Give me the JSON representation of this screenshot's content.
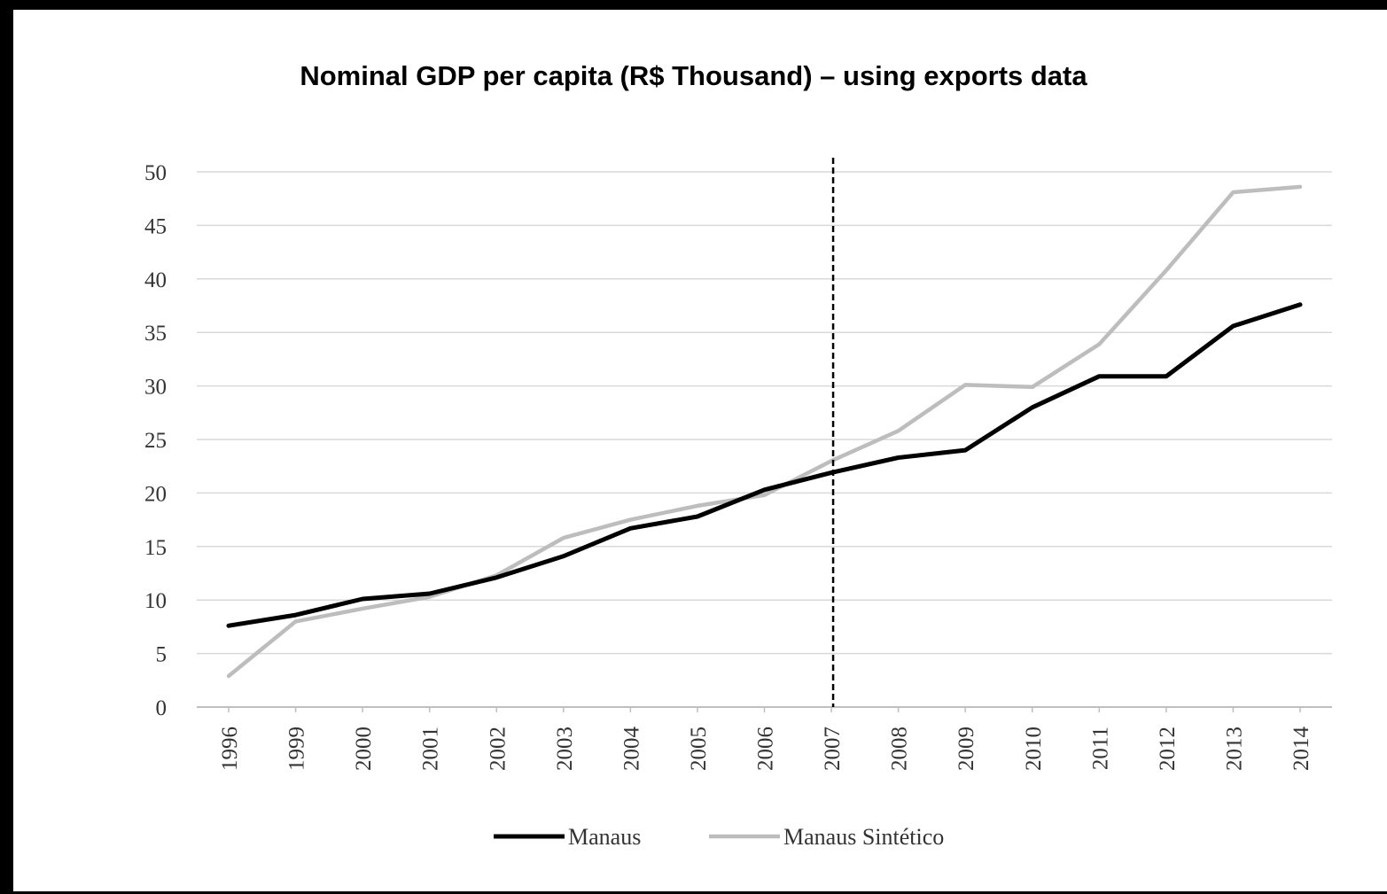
{
  "colors": {
    "manaus": "#000000",
    "synthetic": "#bdbdbd",
    "grid": "#d9d9d9",
    "axis": "#bfbfbf",
    "marker": "#000000"
  },
  "chart_data": {
    "type": "line",
    "title": "Nominal GDP per capita (R$ Thousand) – using exports data",
    "xlabel": "",
    "ylabel": "",
    "categories": [
      "1996",
      "1999",
      "2000",
      "2001",
      "2002",
      "2003",
      "2004",
      "2005",
      "2006",
      "2007",
      "2008",
      "2009",
      "2010",
      "2011",
      "2012",
      "2013",
      "2014"
    ],
    "ylim": [
      0,
      50
    ],
    "yticks": [
      0,
      5,
      10,
      15,
      20,
      25,
      30,
      35,
      40,
      45,
      50
    ],
    "grid": true,
    "legend_position": "bottom",
    "vertical_marker": "2007",
    "series": [
      {
        "name": "Manaus",
        "color": "#000000",
        "values": [
          7.6,
          8.6,
          10.1,
          10.6,
          12.1,
          14.1,
          16.7,
          17.8,
          20.3,
          21.9,
          23.3,
          24.0,
          28.0,
          30.9,
          30.9,
          35.6,
          37.6
        ]
      },
      {
        "name": "Manaus Sintético",
        "color": "#bdbdbd",
        "values": [
          2.9,
          8.0,
          9.2,
          10.3,
          12.3,
          15.8,
          17.5,
          18.8,
          19.8,
          23.0,
          25.8,
          30.1,
          29.9,
          33.9,
          40.8,
          48.1,
          48.6
        ]
      }
    ]
  }
}
